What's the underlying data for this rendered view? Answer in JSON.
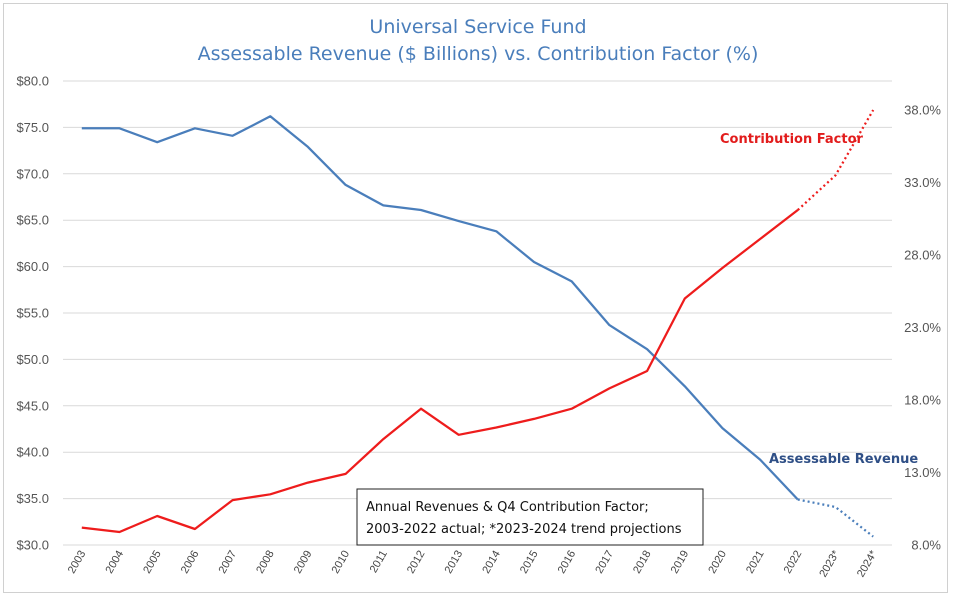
{
  "chart_data": {
    "type": "line",
    "title": "Universal Service Fund",
    "subtitle": "Assessable Revenue ($ Billions) vs. Contribution Factor (%)",
    "categories": [
      "2003",
      "2004",
      "2005",
      "2006",
      "2007",
      "2008",
      "2009",
      "2010",
      "2011",
      "2012",
      "2013",
      "2014",
      "2015",
      "2016",
      "2017",
      "2018",
      "2019",
      "2020",
      "2021",
      "2022",
      "2023*",
      "2024*"
    ],
    "left_axis": {
      "ylim": [
        30,
        80
      ],
      "ticks": [
        "$30.0",
        "$35.0",
        "$40.0",
        "$45.0",
        "$50.0",
        "$55.0",
        "$60.0",
        "$65.0",
        "$70.0",
        "$75.0",
        "$80.0"
      ]
    },
    "right_axis": {
      "ylim": [
        8,
        40
      ],
      "ticks": [
        "8.0%",
        "13.0%",
        "18.0%",
        "23.0%",
        "28.0%",
        "33.0%",
        "38.0%"
      ]
    },
    "series": [
      {
        "name": "Assessable Revenue",
        "axis": "left",
        "color": "#4a7ebb",
        "label_color": "#2f4f86",
        "actual_count": 20,
        "values": [
          74.9,
          74.9,
          73.4,
          74.9,
          74.1,
          76.2,
          72.9,
          68.8,
          66.6,
          66.1,
          64.9,
          63.8,
          60.5,
          58.4,
          53.7,
          51.1,
          47.1,
          42.6,
          39.2,
          34.9,
          34.1,
          30.9
        ]
      },
      {
        "name": "Contribution Factor",
        "axis": "right",
        "color": "#ee1c1c",
        "label_color": "#e21c1c",
        "actual_count": 20,
        "values": [
          9.2,
          8.9,
          10.0,
          9.1,
          11.1,
          11.5,
          12.3,
          12.9,
          15.3,
          17.4,
          15.6,
          16.1,
          16.7,
          17.4,
          18.8,
          20.0,
          25.0,
          27.1,
          29.1,
          31.1,
          33.5,
          38.0
        ]
      }
    ],
    "annotation": {
      "line1": "Annual Revenues & Q4 Contribution Factor;",
      "line2": "2003-2022 actual; *2023-2024 trend projections"
    },
    "series_labels": {
      "contribution": "Contribution  Factor",
      "revenue": "Assessable Revenue"
    }
  }
}
